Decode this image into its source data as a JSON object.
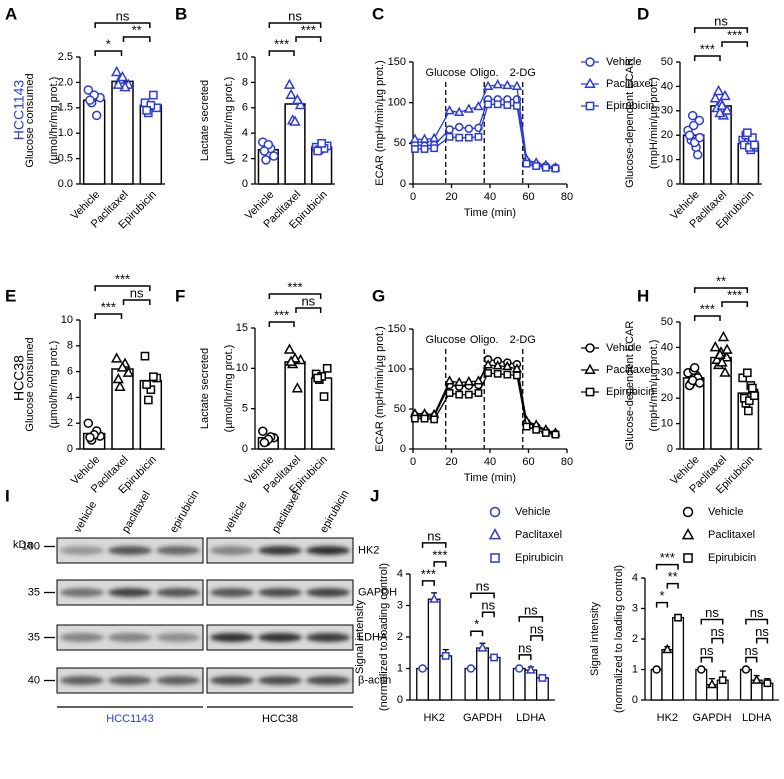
{
  "row_labels": [
    "HCC1143",
    "HCC38"
  ],
  "chart_data": [
    {
      "type": "bar",
      "panel": "A",
      "ylabel": [
        "Glucose consumed",
        "(µmol/hr/mg prot.)"
      ],
      "categories": [
        "Vehicle",
        "Paclitaxel",
        "Epirubicin"
      ],
      "values": [
        1.65,
        2.02,
        1.55
      ],
      "points": [
        [
          1.85,
          1.7,
          1.6,
          1.35,
          1.75,
          1.65
        ],
        [
          2.2,
          1.95,
          2.05,
          1.9,
          2.1,
          1.95
        ],
        [
          1.6,
          1.5,
          1.4,
          1.75,
          1.55,
          1.45
        ]
      ],
      "markers": [
        "circle",
        "triangle",
        "square"
      ],
      "color": "#2b3bd4",
      "ylim": [
        0,
        2.5
      ],
      "yticks": [
        {
          "value": 0,
          "label": "0.0"
        },
        0.5,
        {
          "value": 1,
          "label": "1.0"
        },
        1.5,
        {
          "value": 2,
          "label": "2.0"
        },
        2.5
      ],
      "significance": [
        {
          "from": 0,
          "to": 1,
          "label": "*"
        },
        {
          "from": 1,
          "to": 2,
          "label": "**"
        },
        {
          "from": 0,
          "to": 2,
          "label": "ns"
        }
      ]
    },
    {
      "type": "bar",
      "panel": "B",
      "ylabel": [
        "Lactate secreted",
        "(µmol/hr/mg prot.)"
      ],
      "categories": [
        "Vehicle",
        "Paclitaxel",
        "Epirubicin"
      ],
      "values": [
        2.7,
        6.3,
        2.9
      ],
      "points": [
        [
          3.3,
          2.2,
          1.9,
          2.8,
          3.1,
          2.6
        ],
        [
          7.8,
          6.2,
          5.0,
          6.6,
          4.9,
          7.0
        ],
        [
          2.9,
          3.0,
          2.7,
          2.8,
          3.2,
          2.6
        ]
      ],
      "markers": [
        "circle",
        "triangle",
        "square"
      ],
      "color": "#2b3bd4",
      "ylim": [
        0,
        10
      ],
      "yticks": [
        0,
        2,
        4,
        6,
        8,
        10
      ],
      "significance": [
        {
          "from": 0,
          "to": 1,
          "label": "***"
        },
        {
          "from": 1,
          "to": 2,
          "label": "***"
        },
        {
          "from": 0,
          "to": 2,
          "label": "ns"
        }
      ]
    },
    {
      "type": "line",
      "panel": "C",
      "ylabel": "ECAR (mpH/min/µg prot.)",
      "xlabel": "Time (min)",
      "x": [
        1,
        6,
        11,
        19,
        24,
        29,
        34,
        39,
        44,
        49,
        54,
        59,
        64,
        69,
        74
      ],
      "series": [
        {
          "name": "Vehicle",
          "color": "#2b3bd4",
          "marker": "circle",
          "values": [
            48,
            47,
            48,
            67,
            70,
            68,
            69,
            104,
            104,
            104,
            104,
            28,
            24,
            22,
            20
          ]
        },
        {
          "name": "Paclitaxel",
          "color": "#2b3bd4",
          "marker": "triangle",
          "values": [
            55,
            55,
            56,
            90,
            88,
            92,
            95,
            120,
            122,
            121,
            120,
            30,
            26,
            23,
            20
          ]
        },
        {
          "name": "Epirubicin",
          "color": "#2b3bd4",
          "marker": "square",
          "values": [
            43,
            43,
            44,
            58,
            57,
            57,
            58,
            98,
            98,
            97,
            96,
            25,
            22,
            20,
            19
          ]
        }
      ],
      "events": [
        {
          "x": 17,
          "label": "Glucose"
        },
        {
          "x": 37,
          "label": "Oligo."
        },
        {
          "x": 57,
          "label": "2-DG"
        }
      ],
      "xlim": [
        0,
        80
      ],
      "xticks": [
        0,
        20,
        40,
        60,
        80
      ],
      "ylim": [
        0,
        150
      ],
      "yticks": [
        0,
        50,
        100,
        150
      ],
      "legend": "right"
    },
    {
      "type": "bar",
      "panel": "D",
      "ylabel": [
        "Glucose-dependent ECAR",
        "(mpH/min/µg prot.)"
      ],
      "categories": [
        "Vehicle",
        "Paclitaxel",
        "Epirubicin"
      ],
      "values": [
        20,
        32,
        16.5
      ],
      "points": [
        [
          22,
          26,
          18,
          15,
          24,
          20,
          12,
          28,
          17,
          19
        ],
        [
          35,
          30,
          38,
          28,
          33,
          31,
          36,
          29,
          32,
          30
        ],
        [
          18,
          15,
          20,
          14,
          17,
          16,
          19,
          21,
          15,
          16
        ]
      ],
      "markers": [
        "circle",
        "triangle",
        "square"
      ],
      "color": "#2b3bd4",
      "ylim": [
        0,
        50
      ],
      "yticks": [
        0,
        10,
        20,
        30,
        40,
        50
      ],
      "significance": [
        {
          "from": 0,
          "to": 1,
          "label": "***"
        },
        {
          "from": 1,
          "to": 2,
          "label": "***"
        },
        {
          "from": 0,
          "to": 2,
          "label": "ns"
        }
      ]
    },
    {
      "type": "bar",
      "panel": "E",
      "ylabel": [
        "Glucose consumed",
        "(µmol/hr/mg prot.)"
      ],
      "categories": [
        "Vehicle",
        "Paclitaxel",
        "Epirubicin"
      ],
      "values": [
        1.2,
        6.2,
        5.3
      ],
      "points": [
        [
          2.0,
          1.0,
          0.7,
          1.4,
          1.1,
          0.9
        ],
        [
          7.0,
          5.9,
          4.8,
          6.6,
          6.3,
          5.4
        ],
        [
          7.2,
          5.5,
          3.8,
          5.6,
          4.6,
          5.0
        ]
      ],
      "markers": [
        "circle",
        "triangle",
        "square"
      ],
      "color": "#000000",
      "ylim": [
        0,
        10
      ],
      "yticks": [
        0,
        2,
        4,
        6,
        8,
        10
      ],
      "significance": [
        {
          "from": 0,
          "to": 1,
          "label": "***"
        },
        {
          "from": 1,
          "to": 2,
          "label": "ns"
        },
        {
          "from": 0,
          "to": 2,
          "label": "***"
        }
      ]
    },
    {
      "type": "bar",
      "panel": "F",
      "ylabel": [
        "Lactate secreted",
        "(µmol/hr/mg prot.)"
      ],
      "categories": [
        "Vehicle",
        "Paclitaxel",
        "Epirubicin"
      ],
      "values": [
        1.4,
        10.8,
        8.8
      ],
      "points": [
        [
          2.2,
          1.4,
          0.9,
          1.5,
          1.2,
          0.8
        ],
        [
          12.3,
          11.0,
          10.5,
          7.5,
          11.2,
          10.8
        ],
        [
          9.3,
          10.0,
          8.6,
          6.5,
          9.0,
          8.8
        ]
      ],
      "markers": [
        "circle",
        "triangle",
        "square"
      ],
      "color": "#000000",
      "ylim": [
        0,
        15
      ],
      "yticks": [
        0,
        5,
        10,
        15
      ],
      "significance": [
        {
          "from": 0,
          "to": 1,
          "label": "***"
        },
        {
          "from": 1,
          "to": 2,
          "label": "ns"
        },
        {
          "from": 0,
          "to": 2,
          "label": "***"
        }
      ]
    },
    {
      "type": "line",
      "panel": "G",
      "ylabel": "ECAR (mpH/min/µg prot.)",
      "xlabel": "Time (min)",
      "x": [
        1,
        6,
        11,
        19,
        24,
        29,
        34,
        39,
        44,
        49,
        54,
        59,
        64,
        69,
        74
      ],
      "series": [
        {
          "name": "Vehicle",
          "color": "#000000",
          "marker": "circle",
          "values": [
            42,
            42,
            41,
            80,
            78,
            79,
            80,
            112,
            110,
            108,
            106,
            33,
            28,
            22,
            19
          ]
        },
        {
          "name": "Paclitaxel",
          "color": "#000000",
          "marker": "triangle",
          "values": [
            44,
            44,
            43,
            85,
            83,
            84,
            85,
            105,
            104,
            103,
            100,
            35,
            30,
            24,
            20
          ]
        },
        {
          "name": "Epirubicin",
          "color": "#000000",
          "marker": "square",
          "values": [
            38,
            38,
            37,
            70,
            68,
            68,
            70,
            95,
            94,
            93,
            92,
            28,
            24,
            20,
            18
          ]
        }
      ],
      "events": [
        {
          "x": 17,
          "label": "Glucose"
        },
        {
          "x": 37,
          "label": "Oligo."
        },
        {
          "x": 57,
          "label": "2-DG"
        }
      ],
      "xlim": [
        0,
        80
      ],
      "xticks": [
        0,
        20,
        40,
        60,
        80
      ],
      "ylim": [
        0,
        150
      ],
      "yticks": [
        0,
        50,
        100,
        150
      ],
      "legend": "right"
    },
    {
      "type": "bar",
      "panel": "H",
      "ylabel": [
        "Glucose-dependent ECAR",
        "(mpH/min/µg prot.)"
      ],
      "categories": [
        "Vehicle",
        "Paclitaxel",
        "Epirubicin"
      ],
      "values": [
        28,
        36,
        22
      ],
      "points": [
        [
          30,
          27,
          26,
          29,
          31,
          25,
          28,
          27,
          32,
          26
        ],
        [
          40,
          36,
          33,
          44,
          38,
          35,
          30,
          37,
          34,
          39
        ],
        [
          28,
          22,
          18,
          25,
          15,
          20,
          24,
          30,
          19,
          21
        ]
      ],
      "markers": [
        "circle",
        "triangle",
        "square"
      ],
      "color": "#000000",
      "ylim": [
        0,
        50
      ],
      "yticks": [
        0,
        10,
        20,
        30,
        40,
        50
      ],
      "significance": [
        {
          "from": 0,
          "to": 1,
          "label": "***"
        },
        {
          "from": 1,
          "to": 2,
          "label": "***"
        },
        {
          "from": 0,
          "to": 2,
          "label": "**"
        }
      ]
    },
    {
      "type": "grouped_bar",
      "panel": "J",
      "ylabel": [
        "Signal intensity",
        "(normalized to loading control)"
      ],
      "categories": [
        "HK2",
        "GAPDH",
        "LDHA"
      ],
      "series": [
        {
          "name": "Vehicle",
          "color": "#2b3bd4",
          "marker": "circle",
          "values": [
            1,
            1,
            1
          ],
          "errors": [
            0,
            0,
            0
          ]
        },
        {
          "name": "Paclitaxel",
          "color": "#2b3bd4",
          "marker": "triangle",
          "values": [
            3.2,
            1.65,
            0.95
          ],
          "errors": [
            0.2,
            0.15,
            0.1
          ]
        },
        {
          "name": "Epirubicin",
          "color": "#2b3bd4",
          "marker": "square",
          "values": [
            1.4,
            1.35,
            0.7
          ],
          "errors": [
            0.2,
            0.05,
            0.05
          ]
        }
      ],
      "ylim": [
        0,
        4
      ],
      "yticks": [
        0,
        1,
        2,
        3,
        4
      ],
      "legend": "upper right",
      "significance": [
        [
          {
            "from": 0,
            "to": 1,
            "label": "***"
          },
          {
            "from": 1,
            "to": 2,
            "label": "***"
          },
          {
            "from": 0,
            "to": 2,
            "label": "ns"
          }
        ],
        [
          {
            "from": 0,
            "to": 1,
            "label": "*"
          },
          {
            "from": 1,
            "to": 2,
            "label": "ns"
          },
          {
            "from": 0,
            "to": 2,
            "label": "ns"
          }
        ],
        [
          {
            "from": 0,
            "to": 1,
            "label": "ns"
          },
          {
            "from": 1,
            "to": 2,
            "label": "ns"
          },
          {
            "from": 0,
            "to": 2,
            "label": "ns"
          }
        ]
      ]
    },
    {
      "type": "grouped_bar",
      "ylabel": [
        "Signal intensity",
        "(normalized to loading control)"
      ],
      "categories": [
        "HK2",
        "GAPDH",
        "LDHA"
      ],
      "series": [
        {
          "name": "Vehicle",
          "color": "#000000",
          "marker": "circle",
          "values": [
            1,
            1,
            1
          ],
          "errors": [
            0,
            0,
            0
          ]
        },
        {
          "name": "Paclitaxel",
          "color": "#000000",
          "marker": "triangle",
          "values": [
            1.65,
            0.5,
            0.65
          ],
          "errors": [
            0.1,
            0.2,
            0.15
          ]
        },
        {
          "name": "Epirubicin",
          "color": "#000000",
          "marker": "square",
          "values": [
            2.7,
            0.65,
            0.55
          ],
          "errors": [
            0.1,
            0.3,
            0.15
          ]
        }
      ],
      "ylim": [
        0,
        4
      ],
      "yticks": [
        0,
        1,
        2,
        3,
        4
      ],
      "legend": "upper right",
      "significance": [
        [
          {
            "from": 0,
            "to": 1,
            "label": "*"
          },
          {
            "from": 1,
            "to": 2,
            "label": "**"
          },
          {
            "from": 0,
            "to": 2,
            "label": "***"
          }
        ],
        [
          {
            "from": 0,
            "to": 1,
            "label": "ns"
          },
          {
            "from": 1,
            "to": 2,
            "label": "ns"
          },
          {
            "from": 0,
            "to": 2,
            "label": "ns"
          }
        ],
        [
          {
            "from": 0,
            "to": 1,
            "label": "ns"
          },
          {
            "from": 1,
            "to": 2,
            "label": "ns"
          },
          {
            "from": 0,
            "to": 2,
            "label": "ns"
          }
        ]
      ]
    }
  ],
  "blot": {
    "panel": "I",
    "unit": "kDa",
    "ladder": [
      "100",
      "35",
      "35",
      "40"
    ],
    "lanes": [
      "vehicle",
      "paclitaxel",
      "epirubicin"
    ],
    "proteins": [
      "HK2",
      "GAPDH",
      "LDHA",
      "β-actin"
    ],
    "cell_lines": [
      "HCC1143",
      "HCC38"
    ]
  }
}
